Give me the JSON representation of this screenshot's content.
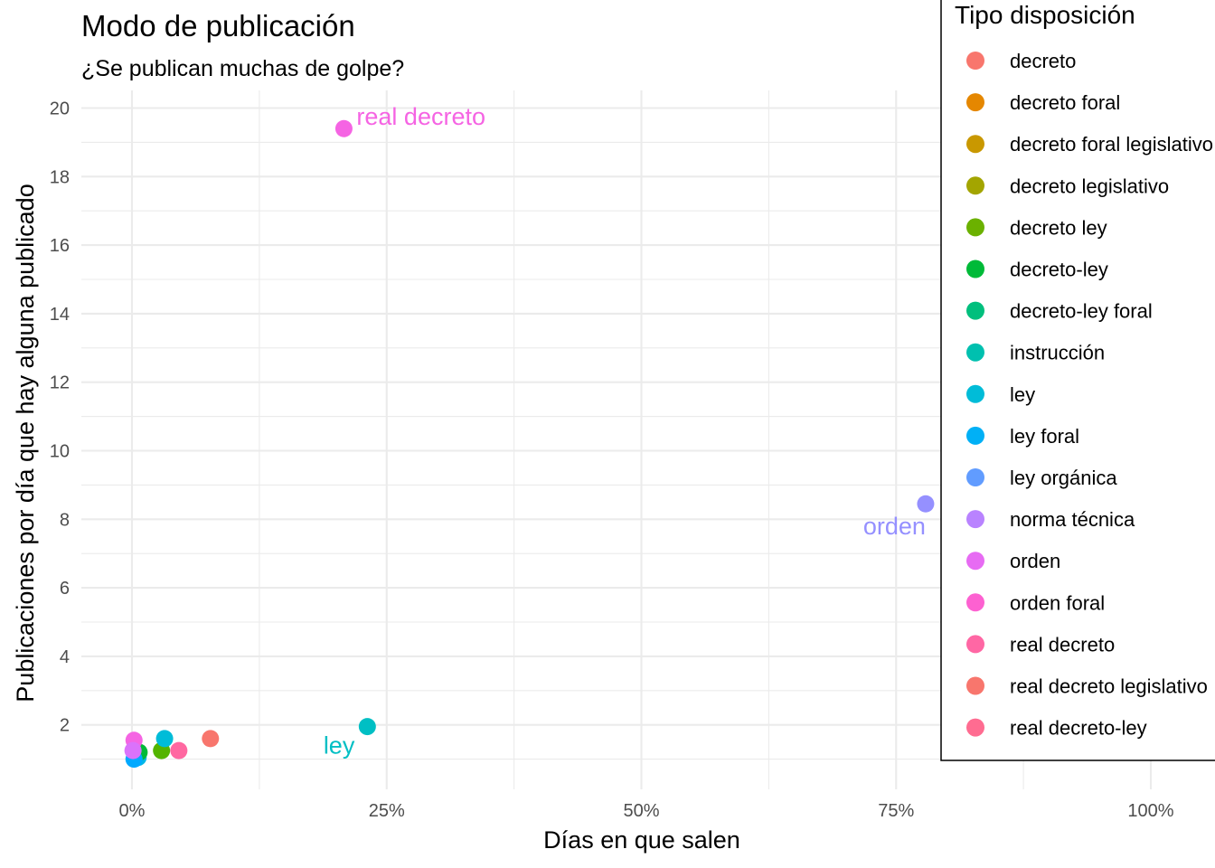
{
  "chart_data": {
    "type": "scatter",
    "title": "Modo de publicación",
    "subtitle": "¿Se publican muchas de golpe?",
    "xlabel": "Días en que salen",
    "ylabel": "Publicaciones por día que hay alguna publicado",
    "xlim": [
      -0.025,
      1.02
    ],
    "ylim": [
      0.2,
      20.4
    ],
    "x_ticks": [
      0,
      0.25,
      0.5,
      0.75,
      1.0
    ],
    "x_tick_labels": [
      "0%",
      "25%",
      "50%",
      "75%",
      "100%"
    ],
    "y_ticks": [
      2,
      4,
      6,
      8,
      10,
      12,
      14,
      16,
      18,
      20
    ],
    "y_tick_labels": [
      "2",
      "4",
      "6",
      "8",
      "10",
      "12",
      "14",
      "16",
      "18",
      "20"
    ],
    "grid": true,
    "legend": {
      "title": "Tipo disposición",
      "position": "right",
      "entries": [
        {
          "name": "decreto",
          "color": "#F8766D"
        },
        {
          "name": "decreto foral",
          "color": "#E58700"
        },
        {
          "name": "decreto foral legislativo",
          "color": "#C99800"
        },
        {
          "name": "decreto legislativo",
          "color": "#A3A500"
        },
        {
          "name": "decreto ley",
          "color": "#6BB100"
        },
        {
          "name": "decreto-ley",
          "color": "#00BA38"
        },
        {
          "name": "decreto-ley foral",
          "color": "#00BF7D"
        },
        {
          "name": "instrucción",
          "color": "#00C0AF"
        },
        {
          "name": "ley",
          "color": "#00BCD8"
        },
        {
          "name": "ley foral",
          "color": "#00B0F6"
        },
        {
          "name": "ley orgánica",
          "color": "#619CFF"
        },
        {
          "name": "norma técnica",
          "color": "#B983FF"
        },
        {
          "name": "orden",
          "color": "#E76BF3"
        },
        {
          "name": "orden foral",
          "color": "#FD61D1"
        },
        {
          "name": "real decreto",
          "color": "#FF67A4"
        },
        {
          "name": "real decreto legislativo",
          "color": "#F8766D"
        },
        {
          "name": "real decreto-ley",
          "color": "#FF6C91"
        }
      ]
    },
    "points": [
      {
        "x": 0.077,
        "y": 1.6,
        "color": "#F8766D"
      },
      {
        "x": 0.029,
        "y": 1.25,
        "color": "#53B400"
      },
      {
        "x": 0.006,
        "y": 1.05,
        "color": "#00B8E7"
      },
      {
        "x": 0.007,
        "y": 1.2,
        "color": "#00BA38"
      },
      {
        "x": 0.002,
        "y": 1.0,
        "color": "#00A9FF"
      },
      {
        "x": 0.032,
        "y": 1.6,
        "color": "#00BCD8"
      },
      {
        "x": 0.046,
        "y": 1.25,
        "color": "#FF68A1"
      },
      {
        "x": 0.002,
        "y": 1.55,
        "color": "#F564E3"
      },
      {
        "x": 0.001,
        "y": 1.25,
        "color": "#DB72FB"
      },
      {
        "x": 0.231,
        "y": 1.95,
        "color": "#00BFC4"
      },
      {
        "x": 0.208,
        "y": 19.4,
        "color": "#F564E3"
      },
      {
        "x": 0.779,
        "y": 8.45,
        "color": "#9590FF"
      }
    ],
    "annotations": [
      {
        "text": "real decreto",
        "x": 0.208,
        "y": 19.4,
        "color": "#F564E3"
      },
      {
        "text": "orden",
        "x": 0.779,
        "y": 8.45,
        "color": "#9590FF"
      },
      {
        "text": "ley",
        "x": 0.231,
        "y": 1.95,
        "color": "#00BFC4"
      }
    ]
  }
}
